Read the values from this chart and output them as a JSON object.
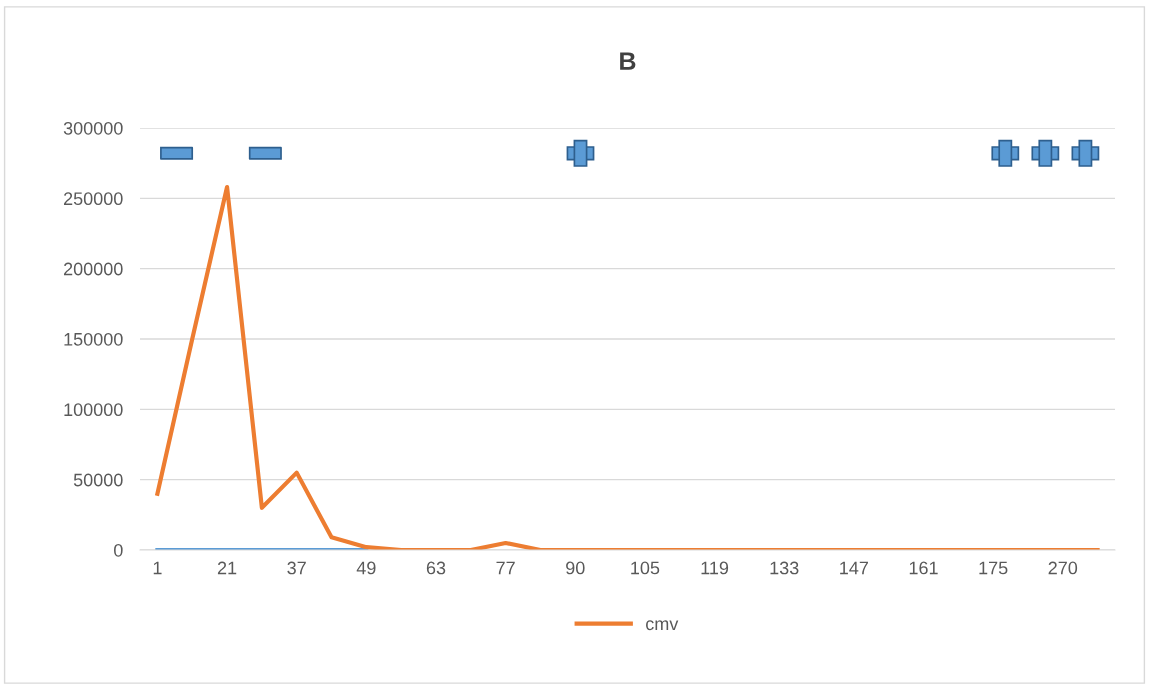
{
  "chart_data": {
    "type": "line",
    "title": "B",
    "categories": [
      "1",
      null,
      "21",
      null,
      "37",
      null,
      "49",
      null,
      "63",
      null,
      "77",
      null,
      "90",
      null,
      "105",
      null,
      "119",
      null,
      "133",
      null,
      "147",
      null,
      "161",
      null,
      "175",
      null,
      "270",
      null
    ],
    "series": [
      {
        "color": "#5b9bd5",
        "values": [
          0,
          0,
          0,
          0,
          0,
          0,
          0,
          null,
          null,
          null,
          null,
          null,
          null,
          null,
          null,
          null,
          null,
          null,
          null,
          null,
          null,
          null,
          null,
          null,
          null,
          null,
          null,
          null
        ]
      },
      {
        "name": "cmv",
        "color": "#ed7d31",
        "values": [
          40000,
          150000,
          258000,
          30000,
          55000,
          9000,
          2000,
          0,
          0,
          0,
          5000,
          0,
          0,
          0,
          0,
          0,
          0,
          0,
          0,
          0,
          0,
          0,
          0,
          0,
          0,
          0,
          0,
          0
        ]
      }
    ],
    "ylim": [
      0,
      300000
    ],
    "yticks": [
      0,
      50000,
      100000,
      150000,
      200000,
      250000,
      300000
    ],
    "grid": "y",
    "legend": "bottom",
    "marker": "none"
  }
}
